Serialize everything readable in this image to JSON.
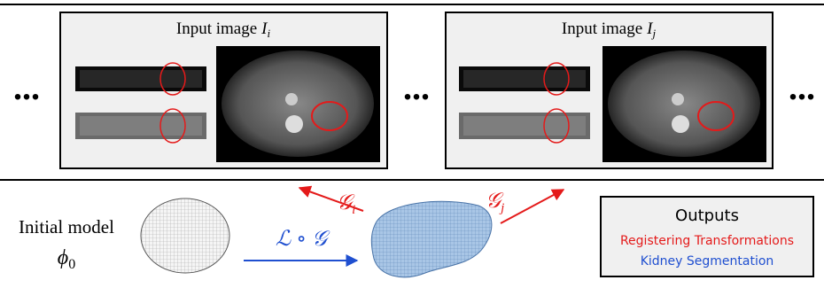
{
  "panels": [
    {
      "label": "Input image",
      "symbol": "I",
      "subscript": "i"
    },
    {
      "label": "Input image",
      "symbol": "I",
      "subscript": "j"
    }
  ],
  "ellipsis": "...",
  "model": {
    "label": "Initial model",
    "symbol": "ϕ",
    "subscript": "0"
  },
  "arrows": {
    "fit": "ℒ ∘ 𝒢",
    "left": {
      "symbol": "𝒢",
      "subscript": "i"
    },
    "right": {
      "symbol": "𝒢",
      "subscript": "j"
    }
  },
  "outputs": {
    "title": "Outputs",
    "items": [
      "Registering Transformations",
      "Kidney Segmentation"
    ]
  }
}
